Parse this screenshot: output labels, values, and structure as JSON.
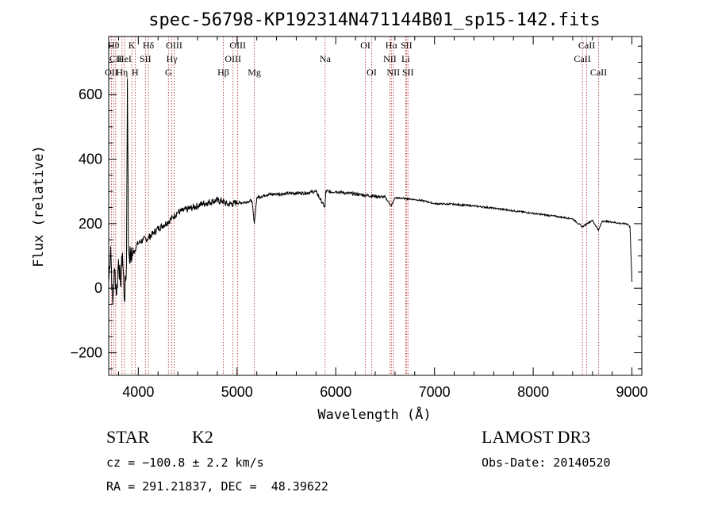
{
  "chart_data": {
    "type": "line",
    "title": "spec-56798-KP192314N471144B01_sp15-142.fits",
    "xlabel": "Wavelength (Å)",
    "ylabel": "Flux (relative)",
    "xlim": [
      3700,
      9100
    ],
    "ylim": [
      -270,
      780
    ],
    "x_ticks": [
      4000,
      5000,
      6000,
      7000,
      8000,
      9000
    ],
    "y_ticks": [
      -200,
      0,
      200,
      400,
      600
    ],
    "series": [
      {
        "name": "flux",
        "x": [
          3700,
          3720,
          3740,
          3760,
          3780,
          3800,
          3820,
          3840,
          3860,
          3880,
          3890,
          3900,
          3920,
          3950,
          3980,
          4000,
          4050,
          4100,
          4150,
          4200,
          4250,
          4300,
          4350,
          4400,
          4450,
          4500,
          4550,
          4600,
          4650,
          4700,
          4750,
          4800,
          4850,
          4900,
          4950,
          5000,
          5050,
          5100,
          5150,
          5175,
          5200,
          5250,
          5300,
          5400,
          5500,
          5600,
          5700,
          5800,
          5890,
          5900,
          5950,
          6000,
          6100,
          6200,
          6300,
          6400,
          6500,
          6563,
          6600,
          6700,
          6800,
          6900,
          7000,
          7200,
          7400,
          7600,
          7800,
          8000,
          8200,
          8400,
          8498,
          8542,
          8600,
          8662,
          8700,
          8800,
          8900,
          8950,
          8980,
          9000
        ],
        "y": [
          20,
          130,
          -50,
          60,
          -20,
          90,
          10,
          110,
          -40,
          70,
          650,
          120,
          95,
          110,
          130,
          140,
          150,
          155,
          170,
          185,
          195,
          205,
          220,
          235,
          240,
          245,
          250,
          255,
          262,
          265,
          270,
          272,
          270,
          260,
          262,
          265,
          265,
          268,
          272,
          200,
          280,
          285,
          290,
          292,
          293,
          295,
          295,
          300,
          250,
          302,
          298,
          300,
          295,
          292,
          288,
          285,
          282,
          255,
          280,
          278,
          275,
          270,
          262,
          260,
          255,
          248,
          240,
          232,
          224,
          215,
          190,
          200,
          210,
          180,
          208,
          205,
          200,
          200,
          190,
          20
        ]
      }
    ],
    "line_markers": [
      {
        "label": "OII",
        "x": 3727,
        "row": 3
      },
      {
        "label": "Hθ",
        "x": 3750,
        "row": 1
      },
      {
        "label": "CII",
        "x": 3771,
        "row": 2
      },
      {
        "label": "Hη",
        "x": 3835,
        "row": 3
      },
      {
        "label": "HeI",
        "x": 3860,
        "row": 2
      },
      {
        "label": "K",
        "x": 3934,
        "row": 1
      },
      {
        "label": "H",
        "x": 3968,
        "row": 3
      },
      {
        "label": "SII",
        "x": 4072,
        "row": 2
      },
      {
        "label": "Hδ",
        "x": 4102,
        "row": 1
      },
      {
        "label": "G",
        "x": 4305,
        "row": 3
      },
      {
        "label": "Hγ",
        "x": 4340,
        "row": 2
      },
      {
        "label": "OIII",
        "x": 4363,
        "row": 1
      },
      {
        "label": "Hβ",
        "x": 4861,
        "row": 3
      },
      {
        "label": "OIII",
        "x": 4959,
        "row": 2
      },
      {
        "label": "OIII",
        "x": 5007,
        "row": 1
      },
      {
        "label": "Mg",
        "x": 5175,
        "row": 3
      },
      {
        "label": "Na",
        "x": 5893,
        "row": 2
      },
      {
        "label": "OI",
        "x": 6300,
        "row": 1
      },
      {
        "label": "OI",
        "x": 6364,
        "row": 3
      },
      {
        "label": "NII",
        "x": 6548,
        "row": 2
      },
      {
        "label": "Hα",
        "x": 6563,
        "row": 1
      },
      {
        "label": "NII",
        "x": 6583,
        "row": 3
      },
      {
        "label": "Li",
        "x": 6708,
        "row": 2
      },
      {
        "label": "SII",
        "x": 6716,
        "row": 1
      },
      {
        "label": "SII",
        "x": 6731,
        "row": 3
      },
      {
        "label": "CaII",
        "x": 8498,
        "row": 2
      },
      {
        "label": "CaII",
        "x": 8542,
        "row": 1
      },
      {
        "label": "CaII",
        "x": 8662,
        "row": 3
      }
    ]
  },
  "info": {
    "object_class": "STAR",
    "subclass": "K2",
    "survey": "LAMOST DR3",
    "redshift": "cz = −100.8 ± 2.2 km/s",
    "obs_date": "Obs-Date: 20140520",
    "coords": "RA = 291.21837, DEC =  48.39622"
  },
  "colors": {
    "marker": "#b22222",
    "spectrum": "#000000"
  }
}
